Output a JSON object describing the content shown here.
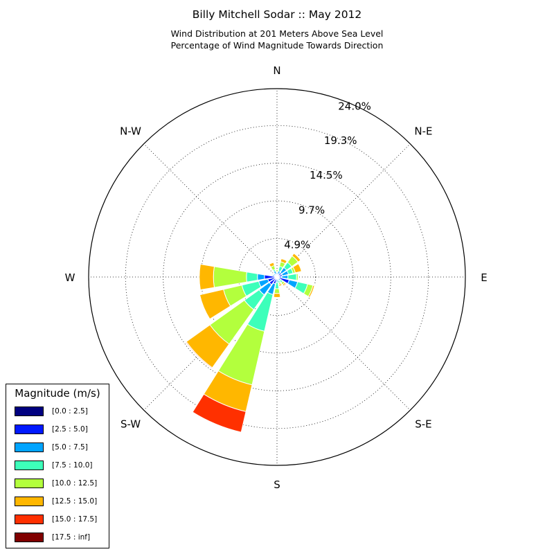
{
  "title": "Billy Mitchell Sodar :: May 2012",
  "subtitle_line1": "Wind Distribution at 201 Meters Above Sea Level",
  "subtitle_line2": "Percentage of Wind Magnitude Towards Direction",
  "chart_data": {
    "type": "windrose",
    "title": "Billy Mitchell Sodar :: May 2012",
    "subtitle": [
      "Wind Distribution at 201 Meters Above Sea Level",
      "Percentage of Wind Magnitude Towards Direction"
    ],
    "direction_labels": [
      "N",
      "N-E",
      "E",
      "S-E",
      "S",
      "S-W",
      "W",
      "N-W"
    ],
    "radial_ticks": [
      "4.9%",
      "9.7%",
      "14.5%",
      "19.3%",
      "24.0%"
    ],
    "radial_tick_values": [
      4.9,
      9.7,
      14.5,
      19.3,
      24.0
    ],
    "rmax": 24.0,
    "unit": "%",
    "grid": true,
    "legend": {
      "title": "Magnitude (m/s)",
      "position": "lower-left",
      "bins": [
        {
          "label": "[0.0 : 2.5]",
          "color": "#000080"
        },
        {
          "label": "[2.5 : 5.0]",
          "color": "#0019ff"
        },
        {
          "label": "[5.0 : 7.5]",
          "color": "#00a4ff"
        },
        {
          "label": "[7.5 : 10.0]",
          "color": "#3dffba"
        },
        {
          "label": "[10.0 : 12.5]",
          "color": "#b3ff3d"
        },
        {
          "label": "[12.5 : 15.0]",
          "color": "#ffb700"
        },
        {
          "label": "[15.0 : 17.5]",
          "color": "#ff3000"
        },
        {
          "label": "[17.5 : inf]",
          "color": "#800000"
        }
      ]
    },
    "sectors": [
      {
        "direction": 0,
        "values": [
          0.1,
          0.3,
          0.2,
          0.1,
          0.2,
          0.0,
          0.0,
          0.0
        ]
      },
      {
        "direction": 22.5,
        "values": [
          0.1,
          0.3,
          0.4,
          0.6,
          0.6,
          0.4,
          0.0,
          0.0
        ]
      },
      {
        "direction": 45,
        "values": [
          0.2,
          0.5,
          0.8,
          0.8,
          1.0,
          0.4,
          0.0,
          0.0
        ]
      },
      {
        "direction": 67.5,
        "values": [
          0.2,
          0.5,
          0.8,
          0.6,
          0.3,
          0.8,
          0.0,
          0.0
        ]
      },
      {
        "direction": 90,
        "values": [
          0.2,
          0.4,
          0.8,
          1.1,
          0.2,
          0.0,
          0.0,
          0.0
        ]
      },
      {
        "direction": 112.5,
        "values": [
          0.3,
          1.3,
          1.1,
          1.3,
          0.7,
          0.2,
          0.0,
          0.0
        ]
      },
      {
        "direction": 135,
        "values": [
          0.1,
          0.2,
          0.3,
          0.3,
          0.3,
          0.2,
          0.1,
          0.0
        ]
      },
      {
        "direction": 157.5,
        "values": [
          0.1,
          0.2,
          0.2,
          0.3,
          0.2,
          0.2,
          0.0,
          0.0
        ]
      },
      {
        "direction": 180,
        "values": [
          0.1,
          0.2,
          0.4,
          0.8,
          0.6,
          0.5,
          0.0,
          0.0
        ]
      },
      {
        "direction": 202.5,
        "values": [
          0.2,
          0.7,
          1.4,
          4.8,
          7.0,
          3.5,
          2.7,
          0.0
        ]
      },
      {
        "direction": 225,
        "values": [
          0.2,
          1.0,
          1.6,
          2.3,
          5.4,
          3.7,
          0.1,
          0.0
        ]
      },
      {
        "direction": 247.5,
        "values": [
          0.2,
          1.0,
          1.2,
          2.2,
          2.4,
          3.1,
          0.0,
          0.0
        ]
      },
      {
        "direction": 270,
        "values": [
          0.3,
          1.3,
          0.9,
          1.4,
          4.2,
          1.8,
          0.0,
          0.0
        ]
      },
      {
        "direction": 292.5,
        "values": [
          0.1,
          0.3,
          0.2,
          0.1,
          0.1,
          0.0,
          0.0,
          0.0
        ]
      },
      {
        "direction": 315,
        "values": [
          0.1,
          0.2,
          0.2,
          0.1,
          0.1,
          0.0,
          0.0,
          0.0
        ]
      },
      {
        "direction": 337.5,
        "values": [
          0.1,
          0.3,
          0.4,
          0.2,
          0.5,
          0.4,
          0.0,
          0.0
        ]
      }
    ]
  }
}
